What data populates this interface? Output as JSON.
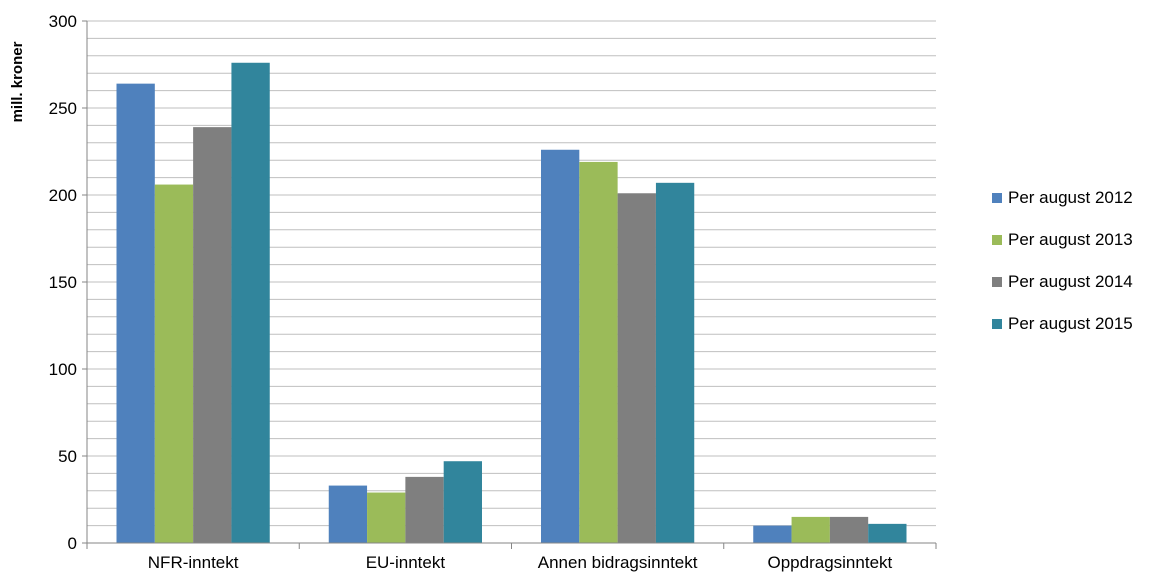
{
  "chart_data": {
    "type": "bar",
    "title": "",
    "xlabel": "",
    "ylabel": "mill. kroner",
    "ylim": [
      0,
      300
    ],
    "yticks": [
      0,
      50,
      100,
      150,
      200,
      250,
      300
    ],
    "grid": true,
    "legend_position": "right",
    "categories": [
      "NFR-inntekt",
      "EU-inntekt",
      "Annen bidragsinntekt",
      "Oppdragsinntekt"
    ],
    "series": [
      {
        "name": "Per august 2012",
        "color": "#4F81BD",
        "values": [
          264,
          33,
          226,
          10
        ]
      },
      {
        "name": "Per august 2013",
        "color": "#9BBB59",
        "values": [
          206,
          29,
          219,
          15
        ]
      },
      {
        "name": "Per august 2014",
        "color": "#7F7F7F",
        "values": [
          239,
          38,
          201,
          15
        ]
      },
      {
        "name": "Per august 2015",
        "color": "#31859C",
        "values": [
          276,
          47,
          207,
          11
        ]
      }
    ]
  }
}
